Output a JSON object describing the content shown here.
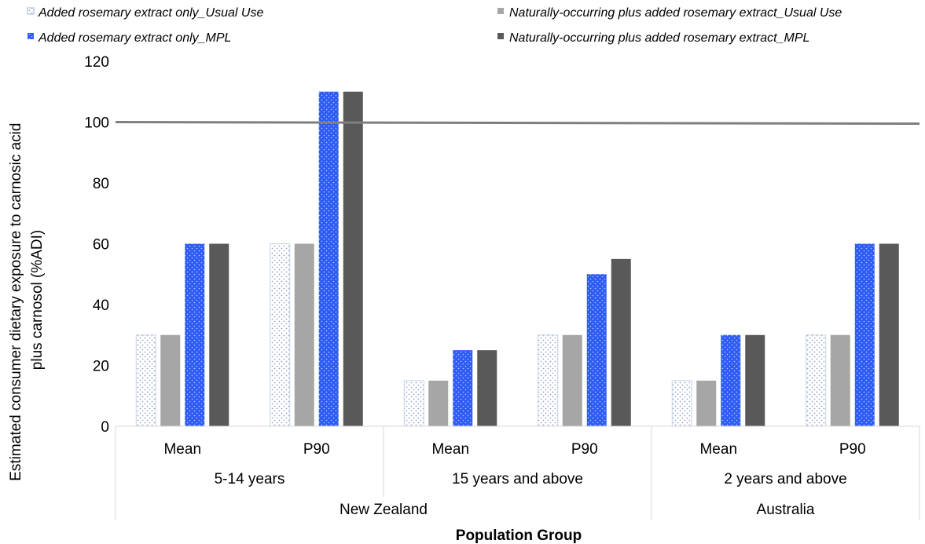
{
  "chart_data": {
    "type": "bar",
    "title": "",
    "xlabel": "Population Group",
    "ylabel_lines": [
      "Estimated consumer dietary exposure to carnosic acid",
      "plus carnosol (%ADI)"
    ],
    "ylim": [
      0,
      120
    ],
    "yticks": [
      "0",
      "20",
      "40",
      "60",
      "80",
      "100",
      "120"
    ],
    "reference_line": 100,
    "legend_position": "top",
    "categories": [
      "Mean",
      "P90",
      "Mean",
      "P90",
      "Mean",
      "P90"
    ],
    "groups_level2": [
      {
        "label": "5-14 years",
        "span": 2
      },
      {
        "label": "15 years and above",
        "span": 2
      },
      {
        "label": "2 years and above",
        "span": 2
      }
    ],
    "groups_level3": [
      {
        "label": "New Zealand",
        "span": 4
      },
      {
        "label": "Australia",
        "span": 2
      }
    ],
    "series": [
      {
        "name": "Added rosemary extract only_Usual Use",
        "color": "#ffffff",
        "pattern": "dots-light",
        "values": [
          30,
          60,
          15,
          30,
          15,
          30
        ]
      },
      {
        "name": "Naturally-occurring plus added rosemary extract_Usual Use",
        "color": "#a6a6a6",
        "values": [
          30,
          60,
          15,
          30,
          15,
          30
        ]
      },
      {
        "name": "Added rosemary extract only_MPL",
        "color": "#2e5cf5",
        "pattern": "dots-blue",
        "values": [
          60,
          110,
          25,
          50,
          30,
          60
        ]
      },
      {
        "name": "Naturally-occurring plus added rosemary extract_MPL",
        "color": "#595959",
        "values": [
          60,
          110,
          25,
          55,
          30,
          60
        ]
      }
    ]
  }
}
